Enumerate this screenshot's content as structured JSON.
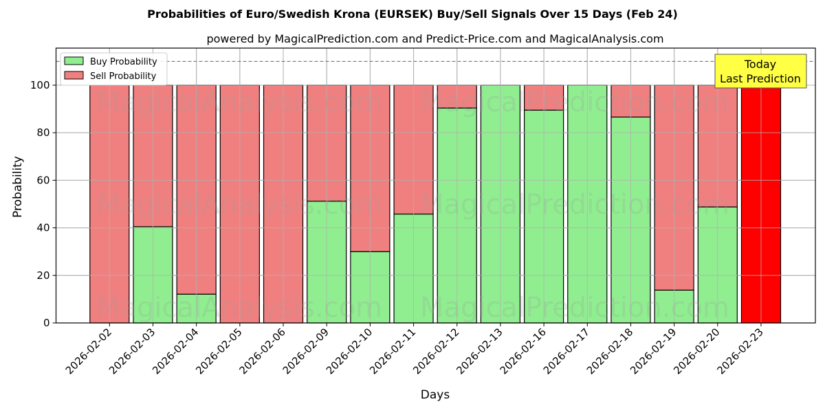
{
  "chart_data": {
    "type": "bar",
    "stacked": true,
    "title": "Probabilities of Euro/Swedish Krona (EURSEK) Buy/Sell Signals Over 15 Days (Feb 24)",
    "subtitle": "powered by MagicalPrediction.com and Predict-Price.com and MagicalAnalysis.com",
    "xlabel": "Days",
    "ylabel": "Probability",
    "ylim": [
      0,
      115.6
    ],
    "yticks": [
      0,
      20,
      40,
      60,
      80,
      100
    ],
    "grid": true,
    "legend_position": "upper left",
    "categories": [
      "2026-02-02",
      "2026-02-03",
      "2026-02-04",
      "2026-02-05",
      "2026-02-06",
      "2026-02-09",
      "2026-02-10",
      "2026-02-11",
      "2026-02-12",
      "2026-02-13",
      "2026-02-16",
      "2026-02-17",
      "2026-02-18",
      "2026-02-19",
      "2026-02-20",
      "2026-02-23"
    ],
    "series": [
      {
        "name": "Buy Probability",
        "color": "#90ee90",
        "values": [
          0,
          40.5,
          12.1,
          0,
          0,
          51.2,
          30.0,
          45.8,
          90.4,
          100,
          89.5,
          100,
          86.6,
          13.8,
          48.8,
          0
        ]
      },
      {
        "name": "Sell Probability",
        "color": "#f08080",
        "values": [
          100,
          59.5,
          87.9,
          100,
          100,
          48.8,
          70.0,
          54.2,
          9.6,
          0,
          10.5,
          0,
          13.4,
          86.2,
          51.2,
          100
        ]
      }
    ],
    "highlight": {
      "index": 15,
      "color": "#ff0000",
      "label": "Today\nLast Prediction"
    },
    "reference_line": {
      "y": 110,
      "style": "dashed",
      "color": "#808080"
    },
    "annotation": {
      "line1": "Today",
      "line2": "Last Prediction",
      "background": "#ffff44"
    },
    "watermarks": [
      "MagicalAnalysis.com",
      "MagicalPrediction.com"
    ]
  }
}
